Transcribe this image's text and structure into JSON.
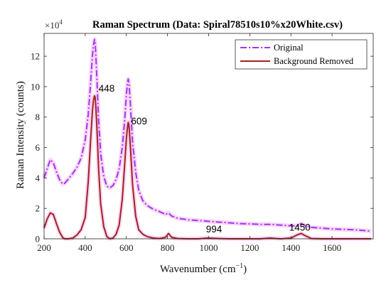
{
  "chart_data": {
    "type": "line",
    "title": "Raman Spectrum (Data: Spiral78510s10%x20White.csv)",
    "xlabel": "Wavenumber (cm",
    "xlabel_sup": "−1",
    "xlabel_close": ")",
    "ylabel": "Raman Intensity (counts)",
    "y_exponent_prefix": "×10",
    "y_exponent_power": "4",
    "xlim": [
      200,
      1800
    ],
    "ylim": [
      0,
      13.5
    ],
    "y_unit_multiplier": 10000,
    "x_ticks": [
      200,
      400,
      600,
      800,
      1000,
      1200,
      1400,
      1600
    ],
    "y_ticks": [
      0,
      2,
      4,
      6,
      8,
      10,
      12
    ],
    "grid": false,
    "legend_position": "top-right",
    "colors": {
      "original": "#a335f5",
      "background_removed": "#a3231e",
      "halo": "#f3b5ef"
    },
    "series": [
      {
        "name": "Original",
        "style": "dash-dot",
        "x": [
          200,
          215,
          230,
          245,
          260,
          275,
          290,
          300,
          320,
          340,
          360,
          380,
          400,
          415,
          425,
          435,
          440,
          445,
          448,
          452,
          457,
          465,
          475,
          490,
          505,
          520,
          535,
          550,
          565,
          580,
          592,
          600,
          606,
          609,
          613,
          620,
          630,
          645,
          660,
          680,
          700,
          730,
          760,
          790,
          805,
          820,
          850,
          900,
          950,
          1000,
          1050,
          1100,
          1150,
          1200,
          1250,
          1300,
          1350,
          1400,
          1430,
          1450,
          1470,
          1500,
          1550,
          1600,
          1650,
          1700,
          1750,
          1790
        ],
        "y": [
          4.0,
          4.6,
          5.2,
          5.0,
          4.4,
          3.9,
          3.6,
          3.65,
          3.95,
          4.3,
          4.7,
          5.3,
          6.5,
          8.2,
          10.0,
          12.0,
          12.7,
          13.1,
          12.9,
          12.0,
          10.4,
          7.8,
          5.6,
          4.1,
          3.45,
          3.35,
          3.5,
          3.9,
          4.6,
          6.0,
          7.8,
          9.5,
          10.3,
          10.5,
          10.2,
          8.8,
          6.4,
          4.4,
          3.2,
          2.5,
          2.2,
          1.95,
          1.8,
          1.6,
          1.7,
          1.5,
          1.35,
          1.25,
          1.2,
          1.15,
          1.1,
          1.05,
          1.0,
          0.98,
          0.95,
          0.95,
          0.9,
          0.85,
          0.85,
          1.0,
          0.85,
          0.75,
          0.7,
          0.65,
          0.62,
          0.6,
          0.55,
          0.5
        ]
      },
      {
        "name": "Background Removed",
        "style": "solid",
        "x": [
          200,
          215,
          230,
          245,
          260,
          275,
          290,
          300,
          320,
          340,
          360,
          380,
          400,
          415,
          425,
          435,
          440,
          445,
          448,
          452,
          457,
          465,
          475,
          490,
          505,
          520,
          535,
          550,
          565,
          580,
          592,
          600,
          606,
          609,
          613,
          620,
          630,
          645,
          660,
          680,
          700,
          730,
          760,
          790,
          805,
          820,
          850,
          900,
          950,
          994,
          1050,
          1100,
          1150,
          1200,
          1250,
          1300,
          1350,
          1400,
          1430,
          1450,
          1470,
          1500,
          1550,
          1600,
          1650,
          1700,
          1750,
          1790
        ],
        "y": [
          0.7,
          1.3,
          1.7,
          1.6,
          1.0,
          0.45,
          0.1,
          0.0,
          0.0,
          0.05,
          0.25,
          0.6,
          1.4,
          3.8,
          6.2,
          8.4,
          9.1,
          9.4,
          9.3,
          8.6,
          7.2,
          4.6,
          2.3,
          0.8,
          0.15,
          0.0,
          0.05,
          0.3,
          0.9,
          2.6,
          4.9,
          6.6,
          7.4,
          7.65,
          7.4,
          6.0,
          3.6,
          1.5,
          0.6,
          0.3,
          0.15,
          0.05,
          0.02,
          0.1,
          0.35,
          0.1,
          0.02,
          0.0,
          0.0,
          0.05,
          0.02,
          0.0,
          0.0,
          0.0,
          0.0,
          0.05,
          0.0,
          0.05,
          0.25,
          0.35,
          0.2,
          0.02,
          0.0,
          0.0,
          0.0,
          0.0,
          0.0,
          0.0
        ]
      }
    ],
    "annotations": [
      {
        "text": "448",
        "x": 448,
        "y": 9.4
      },
      {
        "text": "609",
        "x": 609,
        "y": 7.65
      },
      {
        "text": "994",
        "x": 994,
        "y": 0.05
      },
      {
        "text": "1450",
        "x": 1450,
        "y": 0.35
      }
    ]
  }
}
